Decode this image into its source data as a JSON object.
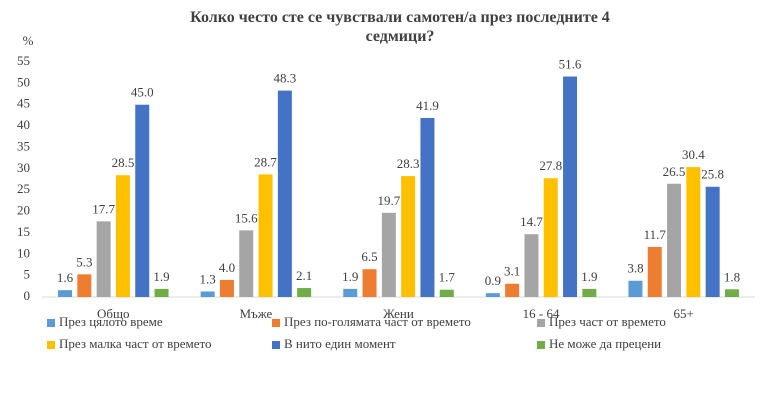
{
  "chart_data": {
    "type": "bar",
    "title": "Колко често сте се чувствали самотен/а през последните 4 седмици?",
    "y_label": "%",
    "categories": [
      "Общо",
      "Мъже",
      "Жени",
      "16 - 64",
      "65+"
    ],
    "series": [
      {
        "name": "През цялото време",
        "color": "#5b9bd5",
        "values": [
          1.6,
          1.3,
          1.9,
          0.9,
          3.8
        ]
      },
      {
        "name": "През по-голямата част от времето",
        "color": "#ed7d31",
        "values": [
          5.3,
          4.0,
          6.5,
          3.1,
          11.7
        ],
        "value_labels": [
          "5.3",
          "4.0",
          "6.5",
          "3.1",
          "11.7"
        ]
      },
      {
        "name": "През част от времето",
        "color": "#a5a5a5",
        "values": [
          17.7,
          15.6,
          19.7,
          14.7,
          26.5
        ]
      },
      {
        "name": "През малка част от времето",
        "color": "#ffc000",
        "values": [
          28.5,
          28.7,
          28.3,
          27.8,
          30.4
        ]
      },
      {
        "name": "В нито един момент",
        "color": "#4472c4",
        "values": [
          45.0,
          48.3,
          41.9,
          51.6,
          25.8
        ],
        "value_labels": [
          "45.0",
          "48.3",
          "41.9",
          "51.6",
          "25.8"
        ]
      },
      {
        "name": "Не може да прецени",
        "color": "#70ad47",
        "values": [
          1.9,
          2.1,
          1.7,
          1.9,
          1.8
        ]
      }
    ],
    "ylim": [
      0,
      55
    ],
    "yticks": [
      0,
      5,
      10,
      15,
      20,
      25,
      30,
      35,
      40,
      45,
      50,
      55
    ],
    "grid": false
  }
}
